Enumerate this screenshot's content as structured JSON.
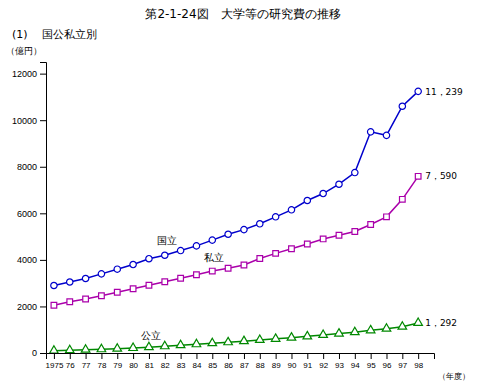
{
  "chart_data": {
    "type": "line",
    "title": "第2-1-24図　大学等の研究費の推移",
    "subtitle": "(1)　 国公私立別",
    "y_label": "（億円）",
    "x_label": "（年度）",
    "x": [
      1975,
      1976,
      1977,
      1978,
      1979,
      1980,
      1981,
      1982,
      1983,
      1984,
      1985,
      1986,
      1987,
      1988,
      1989,
      1990,
      1991,
      1992,
      1993,
      1994,
      1995,
      1996,
      1997,
      1998
    ],
    "xlim": [
      1974.5,
      1999.0
    ],
    "xticks": [
      1975,
      {
        "value": 1976,
        "label": "76"
      },
      {
        "value": 1977,
        "label": "77"
      },
      {
        "value": 1978,
        "label": "78"
      },
      {
        "value": 1979,
        "label": "79"
      },
      {
        "value": 1980,
        "label": "80"
      },
      {
        "value": 1981,
        "label": "81"
      },
      {
        "value": 1982,
        "label": "82"
      },
      {
        "value": 1983,
        "label": "83"
      },
      {
        "value": 1984,
        "label": "84"
      },
      {
        "value": 1985,
        "label": "85"
      },
      {
        "value": 1986,
        "label": "86"
      },
      {
        "value": 1987,
        "label": "87"
      },
      {
        "value": 1988,
        "label": "88"
      },
      {
        "value": 1989,
        "label": "89"
      },
      {
        "value": 1990,
        "label": "90"
      },
      {
        "value": 1991,
        "label": "91"
      },
      {
        "value": 1992,
        "label": "92"
      },
      {
        "value": 1993,
        "label": "93"
      },
      {
        "value": 1994,
        "label": "94"
      },
      {
        "value": 1995,
        "label": "95"
      },
      {
        "value": 1996,
        "label": "96"
      },
      {
        "value": 1997,
        "label": "97"
      },
      {
        "value": 1998,
        "label": "98"
      }
    ],
    "ylim": [
      0,
      12500
    ],
    "yticks": [
      0,
      2000,
      4000,
      6000,
      8000,
      10000,
      12000
    ],
    "grid": false,
    "series": [
      {
        "name": "国立",
        "color": "#0000cc",
        "marker": "circle",
        "values": [
          2900,
          3050,
          3200,
          3400,
          3600,
          3800,
          4050,
          4200,
          4400,
          4600,
          4850,
          5100,
          5300,
          5550,
          5850,
          6150,
          6550,
          6850,
          7250,
          7750,
          9500,
          9350,
          10600,
          11239
        ],
        "value_labels": [
          null,
          null,
          null,
          null,
          null,
          null,
          null,
          null,
          null,
          null,
          null,
          null,
          null,
          null,
          null,
          null,
          null,
          null,
          null,
          null,
          null,
          null,
          null,
          "11，239"
        ]
      },
      {
        "name": "私立",
        "color": "#aa00aa",
        "marker": "square",
        "values": [
          2050,
          2200,
          2320,
          2460,
          2610,
          2760,
          2910,
          3060,
          3210,
          3360,
          3520,
          3640,
          3780,
          4060,
          4280,
          4480,
          4680,
          4900,
          5060,
          5220,
          5520,
          5850,
          6600,
          7590
        ],
        "value_labels": [
          null,
          null,
          null,
          null,
          null,
          null,
          null,
          null,
          null,
          null,
          null,
          null,
          null,
          null,
          null,
          null,
          null,
          null,
          null,
          null,
          null,
          null,
          null,
          "7，590"
        ]
      },
      {
        "name": "公立",
        "color": "#008800",
        "marker": "triangle",
        "values": [
          100,
          120,
          140,
          160,
          185,
          215,
          250,
          290,
          335,
          375,
          420,
          460,
          510,
          560,
          610,
          660,
          715,
          775,
          835,
          895,
          975,
          1045,
          1130,
          1292
        ],
        "value_labels": [
          null,
          null,
          null,
          null,
          null,
          null,
          null,
          null,
          null,
          null,
          null,
          null,
          null,
          null,
          null,
          null,
          null,
          null,
          null,
          null,
          null,
          null,
          null,
          "1，292"
        ]
      }
    ]
  }
}
